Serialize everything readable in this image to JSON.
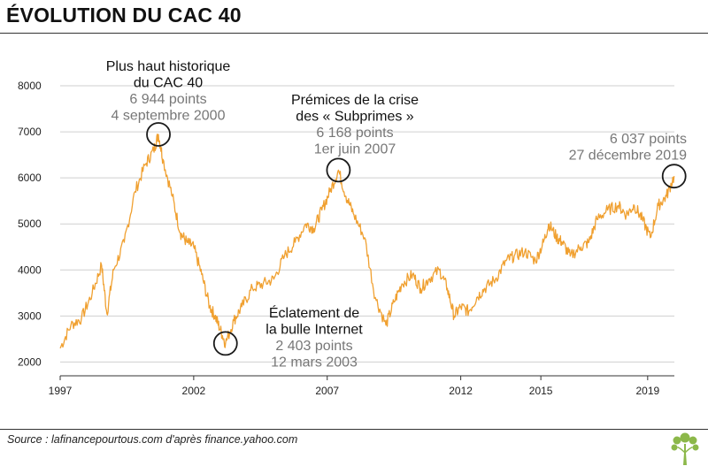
{
  "page": {
    "title": "ÉVOLUTION DU CAC 40",
    "source": "Source : lafinancepourtous.com d'après finance.yahoo.com",
    "logo_icon": "tree-logo-icon",
    "accent_color": "#f0a030",
    "logo_color": "#8cb84a"
  },
  "chart_data": {
    "type": "line",
    "title": "ÉVOLUTION DU CAC 40",
    "xlabel": "",
    "ylabel": "",
    "xlim": [
      1997.0,
      2020.0
    ],
    "ylim": [
      1700,
      8000
    ],
    "grid": true,
    "y_ticks": [
      2000,
      3000,
      4000,
      5000,
      6000,
      7000,
      8000
    ],
    "x_ticks": [
      {
        "label": "1997",
        "value": 1997.0
      },
      {
        "label": "2002",
        "value": 2002.0
      },
      {
        "label": "2007",
        "value": 2007.0
      },
      {
        "label": "2012",
        "value": 2012.0
      },
      {
        "label": "2015",
        "value": 2015.0
      },
      {
        "label": "2019",
        "value": 2019.0
      }
    ],
    "series": [
      {
        "name": "CAC 40",
        "color": "#f0a030",
        "x": [
          1997.0,
          1997.4,
          1997.8,
          1998.2,
          1998.55,
          1998.75,
          1999.0,
          1999.4,
          1999.8,
          2000.2,
          2000.5,
          2000.68,
          2000.85,
          2001.2,
          2001.5,
          2001.75,
          2002.0,
          2002.3,
          2002.6,
          2002.8,
          2003.0,
          2003.19,
          2003.5,
          2003.8,
          2004.2,
          2004.6,
          2005.0,
          2005.4,
          2005.8,
          2006.2,
          2006.5,
          2006.8,
          2007.1,
          2007.42,
          2007.7,
          2008.0,
          2008.4,
          2008.8,
          2009.2,
          2009.5,
          2009.8,
          2010.2,
          2010.5,
          2010.8,
          2011.2,
          2011.5,
          2011.75,
          2012.0,
          2012.3,
          2012.6,
          2012.9,
          2013.3,
          2013.7,
          2014.0,
          2014.4,
          2014.8,
          2015.1,
          2015.3,
          2015.6,
          2015.8,
          2016.1,
          2016.5,
          2016.8,
          2017.1,
          2017.5,
          2017.9,
          2018.2,
          2018.5,
          2018.8,
          2019.1,
          2019.4,
          2019.7,
          2019.99
        ],
        "values": [
          2300,
          2800,
          2950,
          3500,
          4100,
          3050,
          4000,
          4600,
          5700,
          6300,
          6600,
          6944,
          6400,
          5600,
          4800,
          4600,
          4500,
          3900,
          3200,
          3000,
          2700,
          2403,
          2900,
          3200,
          3600,
          3700,
          3800,
          4300,
          4600,
          5000,
          4900,
          5300,
          5700,
          6168,
          5600,
          5200,
          4700,
          3400,
          2800,
          3300,
          3700,
          3900,
          3600,
          3800,
          4000,
          3600,
          3000,
          3200,
          3100,
          3400,
          3600,
          3800,
          4200,
          4300,
          4400,
          4200,
          4600,
          5000,
          4700,
          4600,
          4300,
          4500,
          4600,
          5100,
          5300,
          5400,
          5200,
          5400,
          5100,
          4700,
          5400,
          5600,
          6037
        ]
      }
    ],
    "annotations": [
      {
        "name": "all-time-high",
        "x": 2000.68,
        "y": 6944,
        "head": [
          "Plus haut historique",
          "du CAC 40"
        ],
        "values": [
          "6 944 points",
          "4 septembre 2000"
        ]
      },
      {
        "name": "subprimes",
        "x": 2007.42,
        "y": 6168,
        "head": [
          "Prémices de la crise",
          "des « Subprimes »"
        ],
        "values": [
          "6 168 points",
          "1er juin 2007"
        ]
      },
      {
        "name": "latest",
        "x": 2019.99,
        "y": 6037,
        "head": [],
        "values": [
          "6 037 points",
          "27 décembre 2019"
        ]
      },
      {
        "name": "internet-bubble",
        "x": 2003.19,
        "y": 2403,
        "head": [
          "Éclatement de",
          "la bulle Internet"
        ],
        "values": [
          "2 403 points",
          "12 mars 2003"
        ]
      }
    ]
  }
}
